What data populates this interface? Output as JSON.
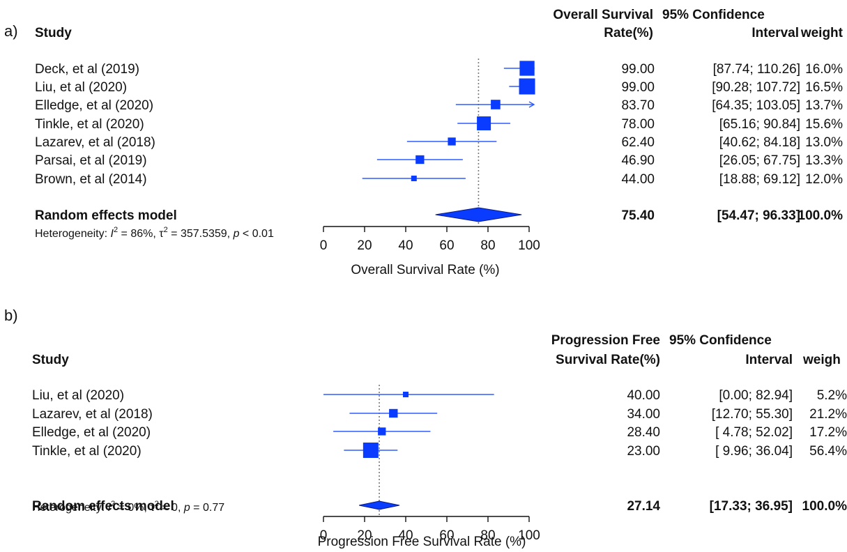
{
  "chart_data": [
    {
      "type": "forest",
      "panel_label": "a)",
      "headers": {
        "study": "Study",
        "rate_line1": "Overall Survival",
        "rate_line2": "Rate(%)",
        "ci_line1": "95% Confidence",
        "ci_line2": "Interval",
        "weight": "weight"
      },
      "studies": [
        {
          "name": "Deck, et al (2019)",
          "rate": 99.0,
          "ci": [
            87.74,
            110.26
          ],
          "rate_text": "99.00",
          "ci_text": "[87.74; 110.26]",
          "weight": "16.0%",
          "arrow_right": true
        },
        {
          "name": "Liu, et al (2020)",
          "rate": 99.0,
          "ci": [
            90.28,
            107.72
          ],
          "rate_text": "99.00",
          "ci_text": "[90.28; 107.72]",
          "weight": "16.5%",
          "arrow_right": true
        },
        {
          "name": "Elledge, et al (2020)",
          "rate": 83.7,
          "ci": [
            64.35,
            103.05
          ],
          "rate_text": "83.70",
          "ci_text": "[64.35; 103.05]",
          "weight": "13.7%",
          "arrow_right": true
        },
        {
          "name": "Tinkle, et al (2020)",
          "rate": 78.0,
          "ci": [
            65.16,
            90.84
          ],
          "rate_text": "78.00",
          "ci_text": "[65.16;  90.84]",
          "weight": "15.6%",
          "arrow_right": false
        },
        {
          "name": "Lazarev, et al (2018)",
          "rate": 62.4,
          "ci": [
            40.62,
            84.18
          ],
          "rate_text": "62.40",
          "ci_text": "[40.62;  84.18]",
          "weight": "13.0%",
          "arrow_right": false
        },
        {
          "name": "Parsai, et al (2019)",
          "rate": 46.9,
          "ci": [
            26.05,
            67.75
          ],
          "rate_text": "46.90",
          "ci_text": "[26.05;  67.75]",
          "weight": "13.3%",
          "arrow_right": false
        },
        {
          "name": "Brown, et al (2014)",
          "rate": 44.0,
          "ci": [
            18.88,
            69.12
          ],
          "rate_text": "44.00",
          "ci_text": "[18.88;  69.12]",
          "weight": "12.0%",
          "arrow_right": false
        }
      ],
      "pooled": {
        "name": "Random effects model",
        "rate": 75.4,
        "ci": [
          54.47,
          96.33
        ],
        "rate_text": "75.40",
        "ci_text": "[54.47;  96.33]",
        "weight": "100.0%"
      },
      "heterogeneity": {
        "prefix": "Heterogeneity: ",
        "i2": "86%",
        "tau2": "357.5359",
        "p": "< 0.01"
      },
      "xlim": [
        0,
        100
      ],
      "ticks": [
        "0",
        "20",
        "40",
        "60",
        "80",
        "100"
      ],
      "xlabel": "Overall Survival Rate (%)",
      "reference_line": "dotted at pooled estimate"
    },
    {
      "type": "forest",
      "panel_label": "b)",
      "headers": {
        "study": "Study",
        "rate_line1": "Progression Free",
        "rate_line2": "Survival Rate(%)",
        "ci_line1": "95% Confidence",
        "ci_line2": "Interval",
        "weight": "weigh"
      },
      "studies": [
        {
          "name": "Liu, et al (2020)",
          "rate": 40.0,
          "ci": [
            0.0,
            82.94
          ],
          "rate_text": "40.00",
          "ci_text": "[0.00; 82.94]",
          "weight": "5.2%"
        },
        {
          "name": "Lazarev, et al (2018)",
          "rate": 34.0,
          "ci": [
            12.7,
            55.3
          ],
          "rate_text": "34.00",
          "ci_text": "[12.70; 55.30]",
          "weight": "21.2%"
        },
        {
          "name": "Elledge, et al (2020)",
          "rate": 28.4,
          "ci": [
            4.78,
            52.02
          ],
          "rate_text": "28.40",
          "ci_text": "[ 4.78; 52.02]",
          "weight": "17.2%"
        },
        {
          "name": "Tinkle, et al (2020)",
          "rate": 23.0,
          "ci": [
            9.96,
            36.04
          ],
          "rate_text": "23.00",
          "ci_text": "[ 9.96; 36.04]",
          "weight": "56.4%"
        }
      ],
      "pooled": {
        "name": "Random effects model",
        "rate": 27.14,
        "ci": [
          17.33,
          36.95
        ],
        "rate_text": "27.14",
        "ci_text": "[17.33; 36.95]",
        "weight": "100.0%"
      },
      "heterogeneity": {
        "prefix": "Heterogeneity: ",
        "i2": "0%",
        "tau2": "0",
        "p": "0.77"
      },
      "xlim": [
        0,
        100
      ],
      "ticks": [
        "0",
        "20",
        "40",
        "60",
        "80",
        "100"
      ],
      "xlabel": "Progression Free Survival Rate (%)",
      "reference_line": "dotted at pooled estimate"
    }
  ],
  "colors": {
    "square": "#0a3cff",
    "ci_line": "#2e5bff",
    "diamond": "#0a3cff",
    "reference": "#777777",
    "text": "#111111"
  }
}
